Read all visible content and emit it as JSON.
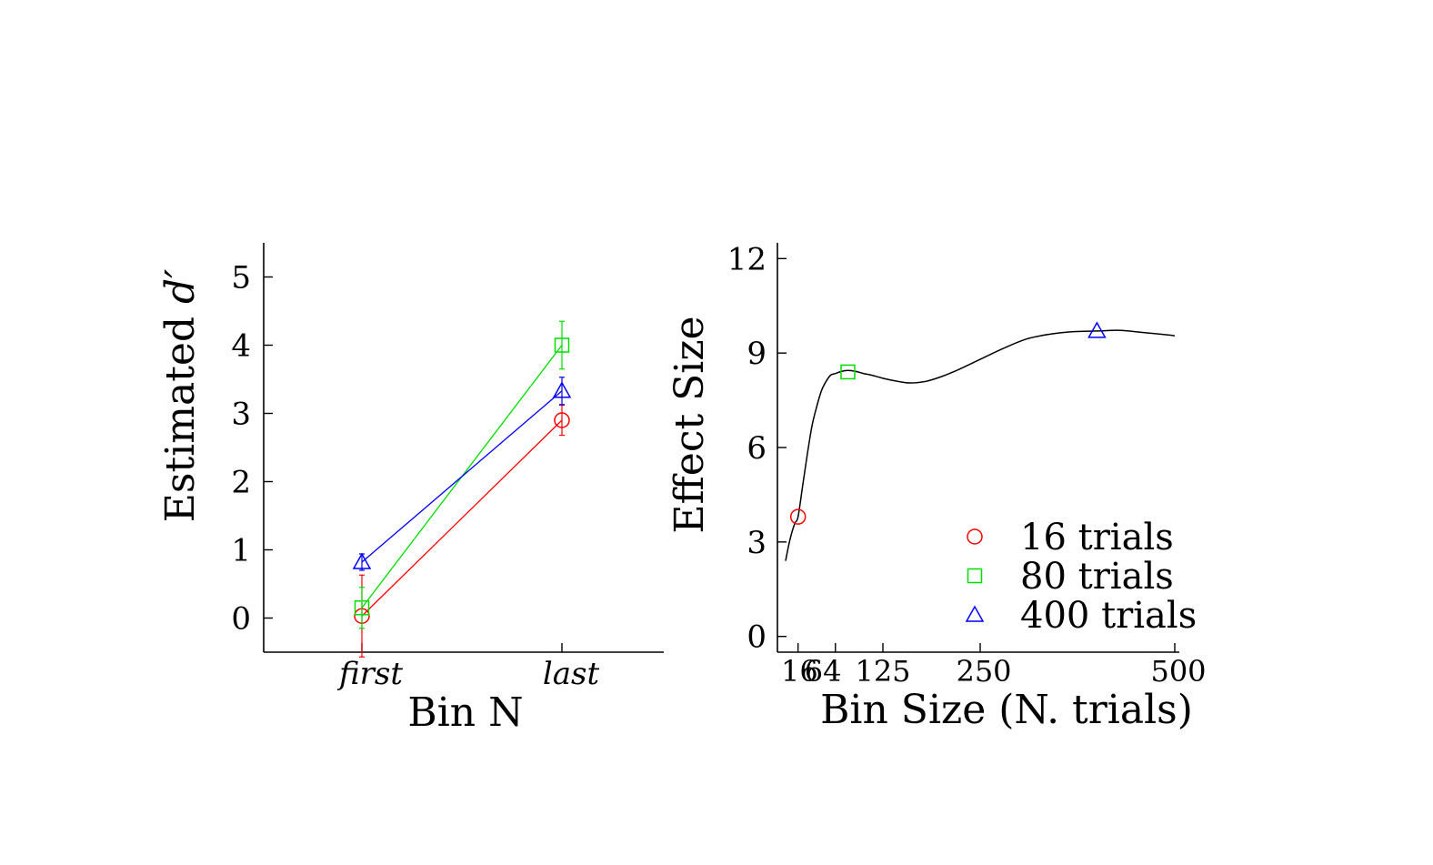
{
  "chart_data": [
    {
      "type": "line",
      "xlabel": "Bin N",
      "ylabel_prefix": "Estimated ",
      "ylabel_symbol": "d′",
      "categories": [
        "first",
        "last"
      ],
      "ylim": [
        -0.5,
        5.5
      ],
      "yticks": [
        "0",
        "1",
        "2",
        "3",
        "4",
        "5"
      ],
      "grid": false,
      "series": [
        {
          "color": "#ff0000",
          "marker": "circle",
          "values": [
            0.03,
            2.9
          ],
          "errors": [
            0.6,
            0.22
          ]
        },
        {
          "color": "#00dd00",
          "marker": "square",
          "values": [
            0.15,
            4.0
          ],
          "errors": [
            0.3,
            0.35
          ]
        },
        {
          "color": "#0000ff",
          "marker": "triangle",
          "values": [
            0.82,
            3.33
          ],
          "errors": [
            0.12,
            0.2
          ]
        }
      ]
    },
    {
      "type": "line",
      "xlabel": "Bin Size (N. trials)",
      "ylabel": "Effect Size",
      "xlim": [
        0,
        500
      ],
      "ylim": [
        -0.5,
        12.5
      ],
      "xticks": [
        16,
        64,
        125,
        250,
        500
      ],
      "xtick_labels": [
        "16",
        "64",
        "125",
        "250",
        "500"
      ],
      "yticks": [
        "0",
        "3",
        "6",
        "9",
        "12"
      ],
      "grid": false,
      "curve_color": "#000000",
      "curve": {
        "x": [
          0,
          4,
          8,
          12,
          16,
          22,
          28,
          34,
          40,
          46,
          52,
          58,
          64,
          72,
          80,
          90,
          100,
          110,
          125,
          140,
          160,
          180,
          200,
          220,
          250,
          280,
          310,
          340,
          370,
          400,
          430,
          460,
          490,
          500
        ],
        "y": [
          2.4,
          2.9,
          3.3,
          3.6,
          3.8,
          4.8,
          5.8,
          6.7,
          7.3,
          7.8,
          8.1,
          8.3,
          8.35,
          8.42,
          8.45,
          8.42,
          8.35,
          8.3,
          8.2,
          8.12,
          8.05,
          8.1,
          8.25,
          8.45,
          8.8,
          9.15,
          9.45,
          9.6,
          9.68,
          9.7,
          9.72,
          9.65,
          9.58,
          9.55
        ]
      },
      "markers": [
        {
          "x": 16,
          "y": 3.8,
          "color": "#ff0000",
          "marker": "circle"
        },
        {
          "x": 80,
          "y": 8.4,
          "color": "#00dd00",
          "marker": "square"
        },
        {
          "x": 400,
          "y": 9.7,
          "color": "#0000ff",
          "marker": "triangle"
        }
      ],
      "legend": {
        "placement": "lower-right",
        "entries": [
          {
            "label": "16 trials",
            "color": "#ff0000",
            "marker": "circle"
          },
          {
            "label": "80 trials",
            "color": "#00dd00",
            "marker": "square"
          },
          {
            "label": "400 trials",
            "color": "#0000ff",
            "marker": "triangle"
          }
        ]
      }
    }
  ]
}
